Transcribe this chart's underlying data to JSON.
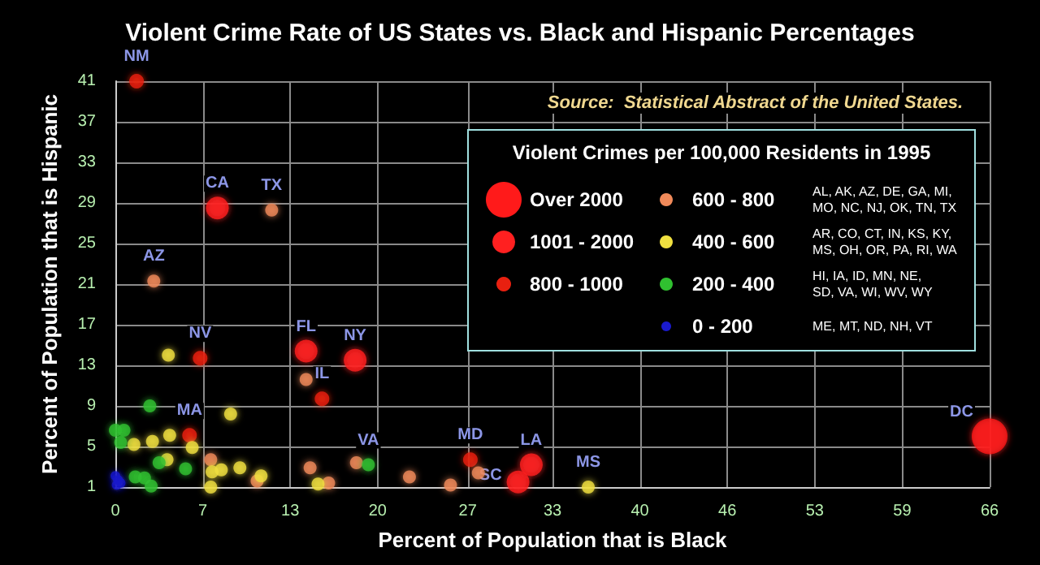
{
  "chart_data": {
    "type": "scatter",
    "title": "Violent Crime Rate of US States vs. Black and Hispanic Percentages",
    "xlabel": "Percent of Population that is Black",
    "ylabel": "Percent of Population that is Hispanic",
    "legend_title": "Violent Crimes per 100,000 Residents in 1995",
    "legend": "top right",
    "grid": true,
    "marker": "circle",
    "xlim": [
      0,
      66
    ],
    "xticks": [
      0,
      {
        "value": 6.6,
        "label": "7"
      },
      {
        "value": 13.2,
        "label": "13"
      },
      {
        "value": 19.8,
        "label": "20"
      },
      {
        "value": 26.6,
        "label": "27"
      },
      33,
      {
        "value": 39.6,
        "label": "40"
      },
      {
        "value": 46.2,
        "label": "46"
      },
      {
        "value": 52.8,
        "label": "53"
      },
      {
        "value": 59.4,
        "label": "59"
      },
      66
    ],
    "ylim": [
      1,
      41
    ],
    "yticks": [
      1,
      5,
      9,
      13,
      17,
      21,
      25,
      29,
      33,
      37,
      41
    ],
    "series": [
      {
        "name": "Over 2000",
        "color": "#ff1a1a",
        "x": [
          66
        ],
        "values": [
          6.0
        ]
      },
      {
        "name": "1001 - 2000",
        "color": "#ff2020",
        "x": [
          7.7,
          14.4,
          18.1,
          30.4,
          31.4
        ],
        "values": [
          28.5,
          14.4,
          13.5,
          1.5,
          3.2
        ]
      },
      {
        "name": "800 - 1000",
        "color": "#e82010",
        "x": [
          1.6,
          6.4,
          5.6,
          15.6,
          26.8
        ],
        "values": [
          41,
          13.7,
          6.1,
          9.7,
          3.7
        ]
      },
      {
        "name": "600 - 800",
        "color": "#f08a5a",
        "x": [
          11.8,
          2.9,
          14.4,
          7.2,
          14.7,
          18.2,
          22.2,
          25.3,
          27.4,
          10.7,
          16.1
        ],
        "values": [
          28.3,
          21.3,
          11.6,
          3.7,
          2.9,
          3.4,
          2.0,
          1.2,
          2.4,
          1.6,
          1.4
        ]
      },
      {
        "name": "400 - 600",
        "color": "#f0e040",
        "x": [
          4.0,
          8.7,
          4.1,
          2.8,
          1.4,
          5.8,
          3.9,
          7.3,
          8.0,
          9.4,
          11.0,
          7.2,
          15.3,
          35.7
        ],
        "values": [
          14.0,
          8.2,
          6.1,
          5.5,
          5.2,
          4.9,
          3.7,
          2.5,
          2.7,
          2.9,
          2.1,
          1.0,
          1.3,
          1.0
        ]
      },
      {
        "name": "200 - 400",
        "color": "#30c030",
        "x": [
          2.6,
          0.0,
          0.65,
          0.4,
          3.3,
          5.3,
          1.5,
          2.2,
          2.7,
          19.1
        ],
        "values": [
          9.0,
          6.6,
          6.6,
          5.4,
          3.4,
          2.8,
          2.0,
          1.9,
          1.1,
          3.2
        ]
      },
      {
        "name": "0 - 200",
        "color": "#1a1acc",
        "x": [
          0.0,
          0.4,
          0.1,
          0.2
        ],
        "values": [
          2.1,
          1.4,
          1.2,
          1.7
        ]
      }
    ],
    "annotations": [
      "Source:  Statistical Abstract of the United States.",
      "AL, AK, AZ, DE, GA, MI,\nMO, NC, NJ, OK, TN, TX",
      "AR, CO, CT, IN, KS, KY,\nMS, OH, OR, PA, RI, WA",
      "HI, IA, ID, MN, NE,\nSD, VA, WI, WV, WY",
      "ME, MT, ND, NH, VT",
      {
        "text": "NM",
        "x": 1.6,
        "y": 41
      },
      {
        "text": "CA",
        "x": 7.7,
        "y": 28.5
      },
      {
        "text": "TX",
        "x": 11.8,
        "y": 28.3
      },
      {
        "text": "AZ",
        "x": 2.9,
        "y": 21.3
      },
      {
        "text": "NV",
        "x": 6.4,
        "y": 13.7
      },
      {
        "text": "FL",
        "x": 14.4,
        "y": 14.4
      },
      {
        "text": "NY",
        "x": 18.1,
        "y": 13.5
      },
      {
        "text": "IL",
        "x": 15.6,
        "y": 9.7
      },
      {
        "text": "MA",
        "x": 5.6,
        "y": 6.1
      },
      {
        "text": "VA",
        "x": 19.1,
        "y": 3.2
      },
      {
        "text": "MD",
        "x": 26.8,
        "y": 3.7
      },
      {
        "text": "LA",
        "x": 31.4,
        "y": 3.2
      },
      {
        "text": "SC",
        "x": 30.4,
        "y": 1.5
      },
      {
        "text": "MS",
        "x": 35.7,
        "y": 1.0
      },
      {
        "text": "DC",
        "x": 66,
        "y": 6.0
      }
    ]
  }
}
